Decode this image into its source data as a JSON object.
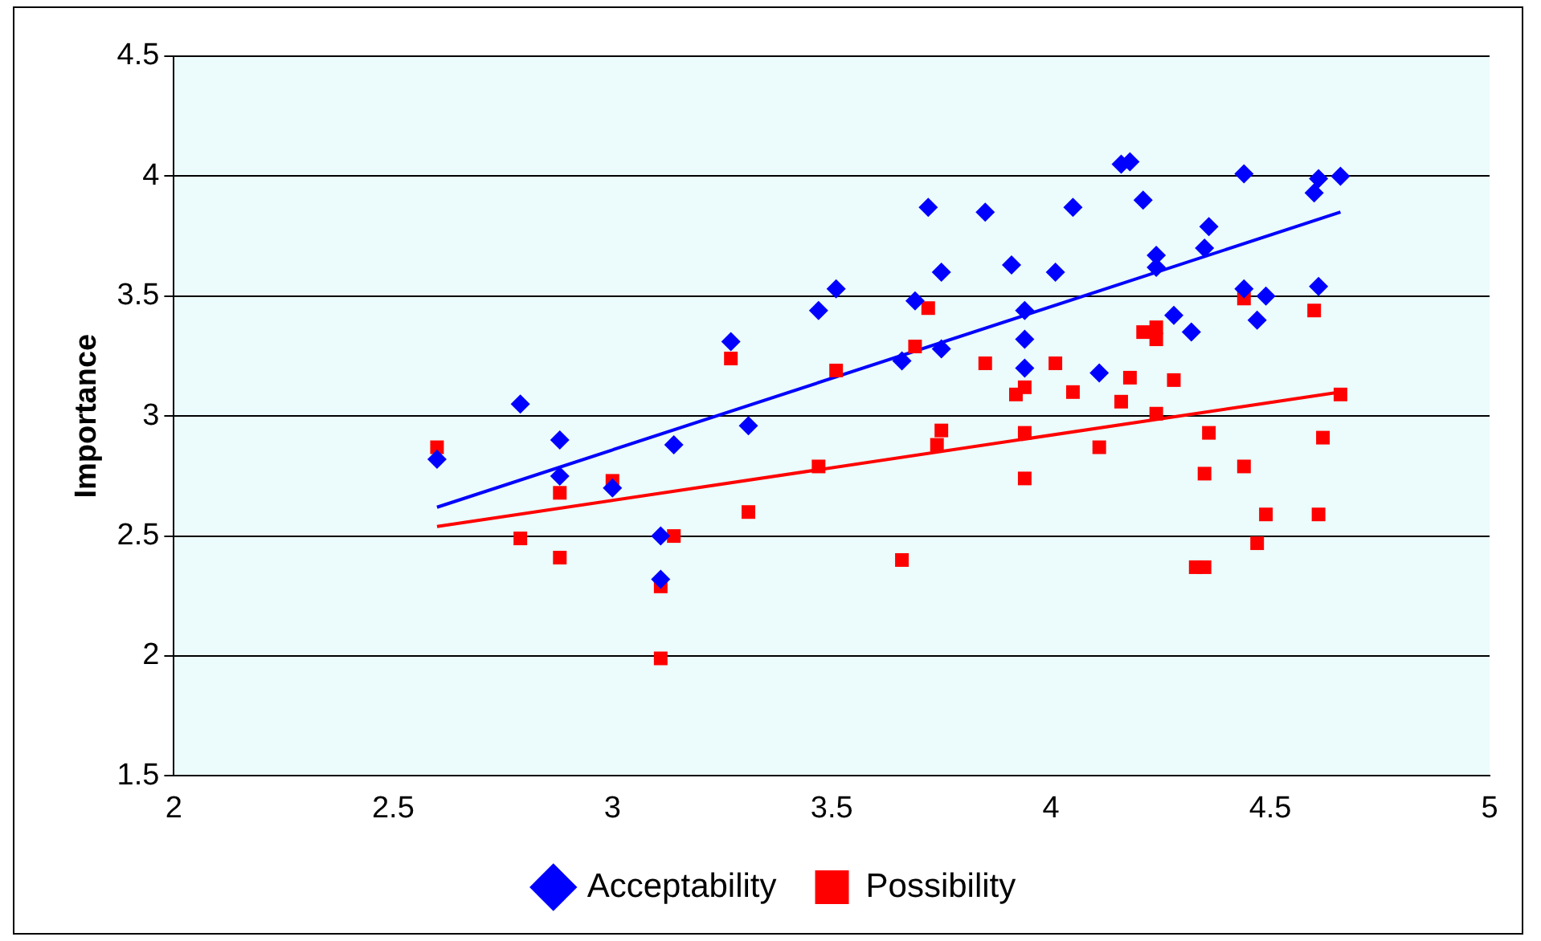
{
  "chart_data": {
    "type": "scatter",
    "ylabel": "Importance",
    "xlim": [
      2,
      5
    ],
    "xticks": [
      2,
      2.5,
      3,
      3.5,
      4,
      4.5,
      5
    ],
    "ylim": [
      1.5,
      4.5
    ],
    "yticks": [
      1.5,
      2,
      2.5,
      3,
      3.5,
      4,
      4.5
    ],
    "grid": "y",
    "legend": "bottom",
    "series": [
      {
        "name": "Acceptability",
        "color": "#0000ff",
        "marker": "diamond",
        "x": [
          2.6,
          2.79,
          2.88,
          2.88,
          3.0,
          3.11,
          3.11,
          3.14,
          3.27,
          3.31,
          3.47,
          3.51,
          3.66,
          3.69,
          3.72,
          3.75,
          3.75,
          3.85,
          3.91,
          3.94,
          3.94,
          3.94,
          4.01,
          4.05,
          4.11,
          4.16,
          4.18,
          4.21,
          4.24,
          4.24,
          4.28,
          4.32,
          4.35,
          4.36,
          4.44,
          4.44,
          4.47,
          4.49,
          4.6,
          4.61,
          4.66,
          4.61
        ],
        "values": [
          2.82,
          3.05,
          2.9,
          2.75,
          2.7,
          2.5,
          2.32,
          2.88,
          3.31,
          2.96,
          3.44,
          3.53,
          3.23,
          3.48,
          3.87,
          3.6,
          3.28,
          3.85,
          3.63,
          3.44,
          3.32,
          3.2,
          3.6,
          3.87,
          3.18,
          4.05,
          4.06,
          3.9,
          3.67,
          3.62,
          3.42,
          3.35,
          3.7,
          3.79,
          4.01,
          3.53,
          3.4,
          3.5,
          3.93,
          3.99,
          4.0,
          3.54
        ]
      },
      {
        "name": "Possibility",
        "color": "#ff0000",
        "marker": "square",
        "x": [
          2.6,
          2.79,
          2.88,
          2.88,
          3.0,
          3.11,
          3.11,
          3.14,
          3.27,
          3.31,
          3.47,
          3.51,
          3.66,
          3.69,
          3.72,
          3.75,
          3.74,
          3.85,
          3.92,
          3.94,
          3.94,
          3.94,
          4.01,
          4.05,
          4.11,
          4.16,
          4.18,
          4.21,
          4.24,
          4.24,
          4.24,
          4.28,
          4.33,
          4.35,
          4.35,
          4.36,
          4.44,
          4.44,
          4.47,
          4.49,
          4.6,
          4.61,
          4.62,
          4.66
        ],
        "values": [
          2.87,
          2.49,
          2.68,
          2.41,
          2.73,
          2.29,
          1.99,
          2.5,
          3.24,
          2.6,
          2.79,
          3.19,
          2.4,
          3.29,
          3.45,
          2.94,
          2.88,
          3.22,
          3.09,
          3.12,
          2.93,
          2.74,
          3.22,
          3.1,
          2.87,
          3.06,
          3.16,
          3.35,
          3.32,
          3.37,
          3.01,
          3.15,
          2.37,
          2.37,
          2.76,
          2.93,
          2.79,
          3.49,
          2.47,
          2.59,
          3.44,
          2.59,
          2.91,
          3.09
        ]
      },
      {
        "type": "line",
        "color": "#0000ff",
        "marker": "none",
        "x": [
          2.6,
          4.66
        ],
        "values": [
          2.62,
          3.85
        ]
      },
      {
        "type": "line",
        "color": "#ff0000",
        "marker": "none",
        "x": [
          2.6,
          4.66
        ],
        "values": [
          2.54,
          3.1
        ]
      }
    ]
  }
}
